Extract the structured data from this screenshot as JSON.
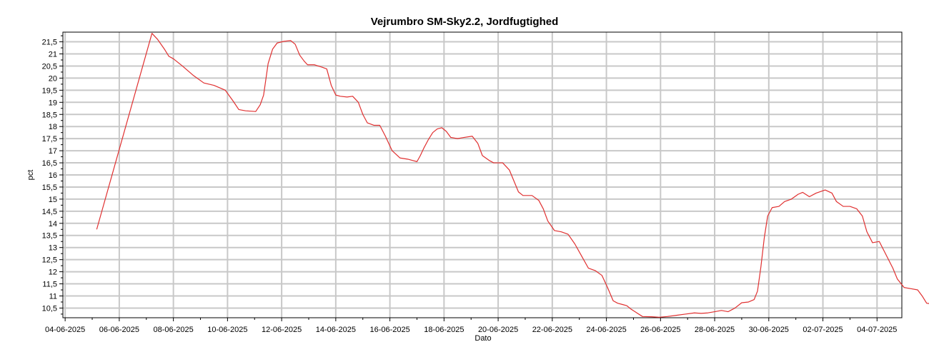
{
  "chart_data": {
    "type": "line",
    "title": "Vejrumbro SM-Sky2.2, Jordfugtighed",
    "xlabel": "Dato",
    "ylabel": "pct",
    "x_ticks": [
      "04-06-2025",
      "06-06-2025",
      "08-06-2025",
      "10-06-2025",
      "12-06-2025",
      "14-06-2025",
      "16-06-2025",
      "18-06-2025",
      "20-06-2025",
      "22-06-2025",
      "24-06-2025",
      "26-06-2025",
      "28-06-2025",
      "30-06-2025",
      "02-07-2025",
      "04-07-2025"
    ],
    "y_ticks": [
      "10,5",
      "11",
      "11,5",
      "12",
      "12,5",
      "13",
      "13,5",
      "14",
      "14,5",
      "15",
      "15,5",
      "16",
      "16,5",
      "17",
      "17,5",
      "18",
      "18,5",
      "19",
      "19,5",
      "20",
      "20,5",
      "21",
      "21,5"
    ],
    "xlim": [
      "2025-06-03T22:00",
      "2025-07-04T22:00"
    ],
    "ylim": [
      10.1,
      21.9
    ],
    "grid": true,
    "series": [
      {
        "color": "#e03030",
        "points": [
          [
            "2025-06-05T04:00",
            13.75
          ],
          [
            "2025-06-07T05:00",
            21.85
          ],
          [
            "2025-06-07T10:00",
            21.6
          ],
          [
            "2025-06-07T16:00",
            21.2
          ],
          [
            "2025-06-07T20:00",
            20.9
          ],
          [
            "2025-06-08T00:00",
            20.8
          ],
          [
            "2025-06-08T08:00",
            20.5
          ],
          [
            "2025-06-08T18:00",
            20.1
          ],
          [
            "2025-06-09T03:00",
            19.8
          ],
          [
            "2025-06-09T12:00",
            19.7
          ],
          [
            "2025-06-09T22:00",
            19.5
          ],
          [
            "2025-06-10T05:00",
            19.05
          ],
          [
            "2025-06-10T10:00",
            18.7
          ],
          [
            "2025-06-10T16:00",
            18.65
          ],
          [
            "2025-06-11T01:00",
            18.62
          ],
          [
            "2025-06-11T05:00",
            18.9
          ],
          [
            "2025-06-11T08:00",
            19.3
          ],
          [
            "2025-06-11T12:00",
            20.6
          ],
          [
            "2025-06-11T16:00",
            21.2
          ],
          [
            "2025-06-11T20:00",
            21.45
          ],
          [
            "2025-06-12T02:00",
            21.52
          ],
          [
            "2025-06-12T08:00",
            21.55
          ],
          [
            "2025-06-12T12:00",
            21.4
          ],
          [
            "2025-06-12T16:00",
            20.95
          ],
          [
            "2025-06-12T20:00",
            20.7
          ],
          [
            "2025-06-12T23:00",
            20.55
          ],
          [
            "2025-06-13T05:00",
            20.55
          ],
          [
            "2025-06-13T12:00",
            20.45
          ],
          [
            "2025-06-13T16:00",
            20.38
          ],
          [
            "2025-06-13T20:00",
            19.7
          ],
          [
            "2025-06-14T00:00",
            19.3
          ],
          [
            "2025-06-14T04:00",
            19.25
          ],
          [
            "2025-06-14T10:00",
            19.22
          ],
          [
            "2025-06-14T15:00",
            19.25
          ],
          [
            "2025-06-14T20:00",
            19.0
          ],
          [
            "2025-06-15T00:00",
            18.5
          ],
          [
            "2025-06-15T04:00",
            18.15
          ],
          [
            "2025-06-15T10:00",
            18.05
          ],
          [
            "2025-06-15T15:00",
            18.05
          ],
          [
            "2025-06-15T20:00",
            17.6
          ],
          [
            "2025-06-16T02:00",
            17.0
          ],
          [
            "2025-06-16T09:00",
            16.7
          ],
          [
            "2025-06-16T16:00",
            16.65
          ],
          [
            "2025-06-16T20:00",
            16.6
          ],
          [
            "2025-06-17T00:00",
            16.55
          ],
          [
            "2025-06-17T03:00",
            16.8
          ],
          [
            "2025-06-17T06:00",
            17.1
          ],
          [
            "2025-06-17T10:00",
            17.45
          ],
          [
            "2025-06-17T14:00",
            17.75
          ],
          [
            "2025-06-17T18:00",
            17.9
          ],
          [
            "2025-06-17T22:00",
            17.95
          ],
          [
            "2025-06-18T02:00",
            17.8
          ],
          [
            "2025-06-18T06:00",
            17.55
          ],
          [
            "2025-06-18T12:00",
            17.5
          ],
          [
            "2025-06-18T18:00",
            17.55
          ],
          [
            "2025-06-19T01:00",
            17.6
          ],
          [
            "2025-06-19T06:00",
            17.3
          ],
          [
            "2025-06-19T10:00",
            16.8
          ],
          [
            "2025-06-19T16:00",
            16.6
          ],
          [
            "2025-06-19T20:00",
            16.5
          ],
          [
            "2025-06-20T04:00",
            16.5
          ],
          [
            "2025-06-20T10:00",
            16.2
          ],
          [
            "2025-06-20T14:00",
            15.75
          ],
          [
            "2025-06-20T18:00",
            15.3
          ],
          [
            "2025-06-20T22:00",
            15.15
          ],
          [
            "2025-06-21T06:00",
            15.15
          ],
          [
            "2025-06-21T12:00",
            14.95
          ],
          [
            "2025-06-21T16:00",
            14.6
          ],
          [
            "2025-06-21T20:00",
            14.1
          ],
          [
            "2025-06-22T02:00",
            13.7
          ],
          [
            "2025-06-22T08:00",
            13.65
          ],
          [
            "2025-06-22T14:00",
            13.55
          ],
          [
            "2025-06-22T20:00",
            13.15
          ],
          [
            "2025-06-23T02:00",
            12.65
          ],
          [
            "2025-06-23T08:00",
            12.15
          ],
          [
            "2025-06-23T14:00",
            12.05
          ],
          [
            "2025-06-23T20:00",
            11.85
          ],
          [
            "2025-06-24T01:00",
            11.35
          ],
          [
            "2025-06-24T06:00",
            10.8
          ],
          [
            "2025-06-24T10:00",
            10.7
          ],
          [
            "2025-06-24T14:00",
            10.65
          ],
          [
            "2025-06-24T18:00",
            10.6
          ],
          [
            "2025-06-24T22:00",
            10.45
          ],
          [
            "2025-06-25T03:00",
            10.3
          ],
          [
            "2025-06-25T08:00",
            10.15
          ],
          [
            "2025-06-25T16:00",
            10.14
          ],
          [
            "2025-06-25T23:00",
            10.12
          ],
          [
            "2025-06-26T06:00",
            10.15
          ],
          [
            "2025-06-26T14:00",
            10.2
          ],
          [
            "2025-06-26T22:00",
            10.25
          ],
          [
            "2025-06-27T06:00",
            10.3
          ],
          [
            "2025-06-27T12:00",
            10.28
          ],
          [
            "2025-06-27T18:00",
            10.3
          ],
          [
            "2025-06-28T00:00",
            10.35
          ],
          [
            "2025-06-28T06:00",
            10.4
          ],
          [
            "2025-06-28T12:00",
            10.35
          ],
          [
            "2025-06-28T18:00",
            10.5
          ],
          [
            "2025-06-29T00:00",
            10.72
          ],
          [
            "2025-06-29T06:00",
            10.75
          ],
          [
            "2025-06-29T11:00",
            10.85
          ],
          [
            "2025-06-29T14:00",
            11.2
          ],
          [
            "2025-06-29T17:00",
            12.2
          ],
          [
            "2025-06-29T20:00",
            13.4
          ],
          [
            "2025-06-29T23:00",
            14.3
          ],
          [
            "2025-06-30T03:00",
            14.65
          ],
          [
            "2025-06-30T09:00",
            14.7
          ],
          [
            "2025-06-30T14:00",
            14.9
          ],
          [
            "2025-06-30T20:00",
            15.0
          ],
          [
            "2025-07-01T02:00",
            15.2
          ],
          [
            "2025-07-01T06:00",
            15.28
          ],
          [
            "2025-07-01T12:00",
            15.1
          ],
          [
            "2025-07-01T18:00",
            15.25
          ],
          [
            "2025-07-02T02:00",
            15.38
          ],
          [
            "2025-07-02T08:00",
            15.25
          ],
          [
            "2025-07-02T12:00",
            14.9
          ],
          [
            "2025-07-02T18:00",
            14.7
          ],
          [
            "2025-07-03T00:00",
            14.7
          ],
          [
            "2025-07-03T06:00",
            14.6
          ],
          [
            "2025-07-03T11:00",
            14.3
          ],
          [
            "2025-07-03T15:00",
            13.65
          ],
          [
            "2025-07-03T20:00",
            13.2
          ],
          [
            "2025-07-04T02:00",
            13.25
          ],
          [
            "2025-07-04T08:00",
            12.7
          ],
          [
            "2025-07-04T14:00",
            12.15
          ],
          [
            "2025-07-04T18:00",
            11.7
          ],
          [
            "2025-07-05T00:00",
            11.35
          ],
          [
            "2025-07-05T06:00",
            11.3
          ],
          [
            "2025-07-05T12:00",
            11.25
          ],
          [
            "2025-07-05T16:00",
            11.0
          ],
          [
            "2025-07-05T20:00",
            10.7
          ],
          [
            "2025-07-06T04:00",
            10.65
          ],
          [
            "2025-07-06T08:00",
            10.58
          ]
        ]
      }
    ]
  }
}
